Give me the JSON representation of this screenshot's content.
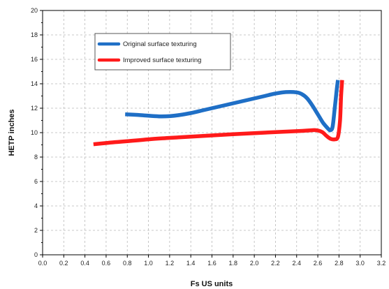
{
  "chart_data": {
    "type": "line",
    "title": "",
    "xlabel": "Fs  US units",
    "ylabel": "HETP  inches",
    "xlim": [
      0.0,
      3.2
    ],
    "ylim": [
      0,
      20
    ],
    "x_ticks": [
      "0.0",
      "0.2",
      "0.4",
      "0.6",
      "0.8",
      "1.0",
      "1.2",
      "1.4",
      "1.6",
      "1.8",
      "2.0",
      "2.2",
      "2.4",
      "2.6",
      "2.8",
      "3.0",
      "3.2"
    ],
    "y_ticks": [
      "0",
      "2",
      "4",
      "6",
      "8",
      "10",
      "12",
      "14",
      "16",
      "18",
      "20"
    ],
    "grid": true,
    "legend_position": "top-left",
    "series": [
      {
        "name": "Original surface texturing",
        "color": "#1f6fc6",
        "points": [
          [
            0.78,
            11.5
          ],
          [
            0.9,
            11.45
          ],
          [
            1.0,
            11.38
          ],
          [
            1.1,
            11.33
          ],
          [
            1.2,
            11.35
          ],
          [
            1.3,
            11.45
          ],
          [
            1.4,
            11.6
          ],
          [
            1.5,
            11.8
          ],
          [
            1.6,
            12.0
          ],
          [
            1.7,
            12.2
          ],
          [
            1.8,
            12.4
          ],
          [
            1.9,
            12.6
          ],
          [
            2.0,
            12.8
          ],
          [
            2.1,
            13.0
          ],
          [
            2.2,
            13.2
          ],
          [
            2.3,
            13.32
          ],
          [
            2.4,
            13.3
          ],
          [
            2.45,
            13.15
          ],
          [
            2.5,
            12.8
          ],
          [
            2.55,
            12.2
          ],
          [
            2.6,
            11.5
          ],
          [
            2.65,
            10.8
          ],
          [
            2.7,
            10.3
          ],
          [
            2.72,
            10.2
          ],
          [
            2.74,
            10.5
          ],
          [
            2.76,
            12.0
          ],
          [
            2.78,
            13.6
          ],
          [
            2.79,
            14.3
          ]
        ]
      },
      {
        "name": "Improved surface texturing",
        "color": "#ff1a1a",
        "points": [
          [
            0.48,
            9.05
          ],
          [
            0.6,
            9.15
          ],
          [
            0.8,
            9.3
          ],
          [
            1.0,
            9.45
          ],
          [
            1.2,
            9.57
          ],
          [
            1.4,
            9.67
          ],
          [
            1.6,
            9.77
          ],
          [
            1.8,
            9.87
          ],
          [
            2.0,
            9.96
          ],
          [
            2.2,
            10.04
          ],
          [
            2.4,
            10.12
          ],
          [
            2.5,
            10.17
          ],
          [
            2.58,
            10.2
          ],
          [
            2.64,
            10.05
          ],
          [
            2.68,
            9.75
          ],
          [
            2.72,
            9.5
          ],
          [
            2.76,
            9.45
          ],
          [
            2.79,
            9.65
          ],
          [
            2.81,
            11.0
          ],
          [
            2.82,
            13.0
          ],
          [
            2.83,
            14.3
          ]
        ]
      }
    ]
  }
}
